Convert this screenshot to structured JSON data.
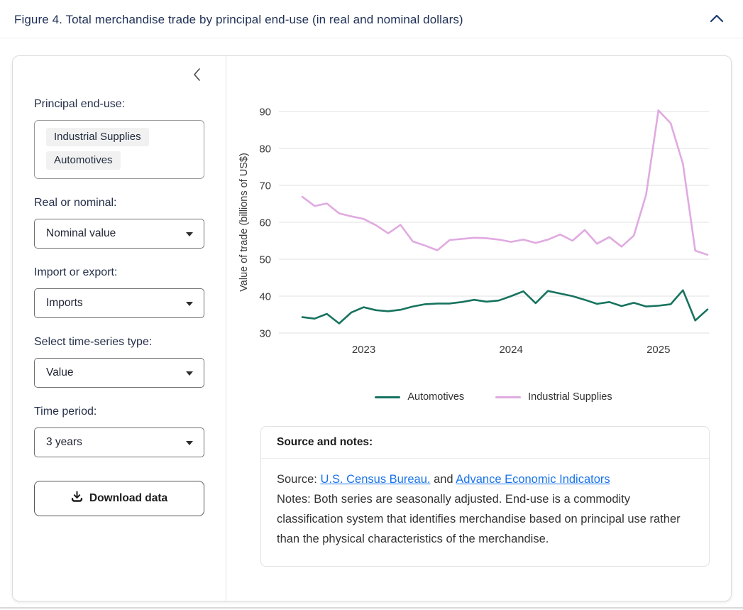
{
  "header": {
    "title": "Figure 4. Total merchandise trade by principal end-use (in real and nominal dollars)",
    "collapse_icon": "chevron-up"
  },
  "sidebar": {
    "collapse_icon": "chevron-left",
    "principal_end_use": {
      "label": "Principal end-use:",
      "selected": [
        "Industrial Supplies",
        "Automotives"
      ]
    },
    "real_or_nominal": {
      "label": "Real or nominal:",
      "value": "Nominal value"
    },
    "import_or_export": {
      "label": "Import or export:",
      "value": "Imports"
    },
    "time_series_type": {
      "label": "Select time-series type:",
      "value": "Value"
    },
    "time_period": {
      "label": "Time period:",
      "value": "3 years"
    },
    "download_button_label": "Download data",
    "download_icon": "download"
  },
  "chart_data": {
    "type": "line",
    "title": "",
    "xlabel": "",
    "ylabel": "Value of trade (billions of US$)",
    "ylim": [
      30,
      90
    ],
    "yticks": [
      30,
      40,
      50,
      60,
      70,
      80,
      90
    ],
    "grid": "horizontal",
    "legend_position": "bottom",
    "x": [
      "2022-08",
      "2022-09",
      "2022-10",
      "2022-11",
      "2022-12",
      "2023-01",
      "2023-02",
      "2023-03",
      "2023-04",
      "2023-05",
      "2023-06",
      "2023-07",
      "2023-08",
      "2023-09",
      "2023-10",
      "2023-11",
      "2023-12",
      "2024-01",
      "2024-02",
      "2024-03",
      "2024-04",
      "2024-05",
      "2024-06",
      "2024-07",
      "2024-08",
      "2024-09",
      "2024-10",
      "2024-11",
      "2024-12",
      "2025-01",
      "2025-02",
      "2025-03",
      "2025-04",
      "2025-05"
    ],
    "xticks": [
      {
        "label": "2023",
        "index": 5
      },
      {
        "label": "2024",
        "index": 17
      },
      {
        "label": "2025",
        "index": 29
      }
    ],
    "series": [
      {
        "name": "Automotives",
        "color": "#17735f",
        "values": [
          34.3,
          33.9,
          35.2,
          32.6,
          35.6,
          37.0,
          36.2,
          35.9,
          36.3,
          37.2,
          37.8,
          38.0,
          38.0,
          38.4,
          39.0,
          38.5,
          38.8,
          40.0,
          41.3,
          38.1,
          41.4,
          40.7,
          40.0,
          39.0,
          37.9,
          38.4,
          37.3,
          38.2,
          37.2,
          37.4,
          37.8,
          41.6,
          33.4,
          36.4
        ]
      },
      {
        "name": "Industrial Supplies",
        "color": "#e0aae0",
        "values": [
          66.9,
          64.4,
          65.1,
          62.4,
          61.6,
          60.9,
          59.2,
          57.0,
          59.3,
          54.8,
          53.7,
          52.4,
          55.2,
          55.5,
          55.8,
          55.7,
          55.3,
          54.7,
          55.3,
          54.4,
          55.3,
          56.7,
          55.0,
          57.9,
          54.2,
          56.0,
          53.4,
          56.4,
          67.5,
          90.3,
          86.8,
          75.8,
          52.3,
          51.2
        ]
      }
    ]
  },
  "source_notes": {
    "title": "Source and notes:",
    "source_prefix": "Source:",
    "link1": "U.S. Census Bureau.",
    "conjunction": "and",
    "link2": "Advance Economic Indicators",
    "notes": "Notes: Both series are seasonally adjusted. End-use is a commodity classification system that identifies merchandise based on principal use rather than the physical characteristics of the merchandise."
  }
}
